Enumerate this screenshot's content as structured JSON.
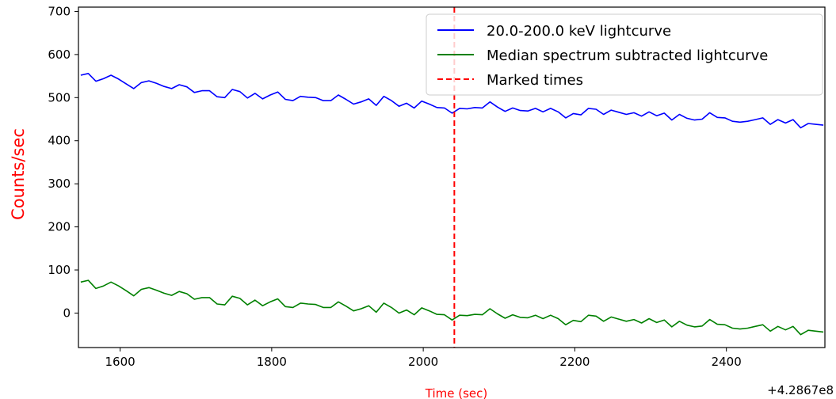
{
  "chart_data": {
    "type": "line",
    "title": "",
    "xlabel": "Time (sec)",
    "ylabel": "Counts/sec",
    "axis_label_color": "#ff0000",
    "x_offset_label": "+4.2867e8",
    "xlim": [
      1545,
      2530
    ],
    "ylim": [
      -80,
      710
    ],
    "xticks": [
      1600,
      1800,
      2000,
      2200,
      2400
    ],
    "yticks": [
      0,
      100,
      200,
      300,
      400,
      500,
      600,
      700
    ],
    "grid": false,
    "legend_position": "top-right",
    "series": [
      {
        "name": "20.0-200.0 keV lightcurve",
        "color": "#0000ff",
        "x": [
          1548,
          1558,
          1568,
          1578,
          1588,
          1598,
          1608,
          1618,
          1628,
          1638,
          1648,
          1658,
          1668,
          1678,
          1688,
          1698,
          1708,
          1718,
          1728,
          1738,
          1748,
          1758,
          1768,
          1778,
          1788,
          1798,
          1808,
          1818,
          1828,
          1838,
          1848,
          1858,
          1868,
          1878,
          1888,
          1898,
          1908,
          1918,
          1928,
          1938,
          1948,
          1958,
          1968,
          1978,
          1988,
          1998,
          2008,
          2018,
          2028,
          2038,
          2048,
          2058,
          2068,
          2078,
          2088,
          2098,
          2108,
          2118,
          2128,
          2138,
          2148,
          2158,
          2168,
          2178,
          2188,
          2198,
          2208,
          2218,
          2228,
          2238,
          2248,
          2258,
          2268,
          2278,
          2288,
          2298,
          2308,
          2318,
          2328,
          2338,
          2348,
          2358,
          2368,
          2378,
          2388,
          2398,
          2408,
          2418,
          2428,
          2438,
          2448,
          2458,
          2468,
          2478,
          2488,
          2498,
          2508,
          2518,
          2528
        ],
        "y": [
          552,
          556,
          538,
          544,
          552,
          543,
          532,
          521,
          535,
          539,
          533,
          526,
          521,
          530,
          525,
          512,
          516,
          516,
          502,
          500,
          519,
          514,
          499,
          510,
          497,
          506,
          513,
          496,
          493,
          503,
          501,
          500,
          493,
          493,
          506,
          496,
          485,
          490,
          497,
          482,
          503,
          493,
          480,
          487,
          476,
          492,
          485,
          477,
          476,
          464,
          475,
          474,
          477,
          476,
          490,
          478,
          468,
          476,
          470,
          469,
          475,
          467,
          475,
          467,
          453,
          463,
          460,
          475,
          473,
          461,
          471,
          466,
          461,
          465,
          457,
          467,
          458,
          464,
          448,
          461,
          452,
          448,
          450,
          465,
          454,
          453,
          445,
          443,
          445,
          449,
          453,
          438,
          449,
          441,
          449,
          430,
          440,
          438,
          436
        ]
      },
      {
        "name": "Median spectrum subtracted lightcurve",
        "color": "#008000",
        "x": [
          1548,
          1558,
          1568,
          1578,
          1588,
          1598,
          1608,
          1618,
          1628,
          1638,
          1648,
          1658,
          1668,
          1678,
          1688,
          1698,
          1708,
          1718,
          1728,
          1738,
          1748,
          1758,
          1768,
          1778,
          1788,
          1798,
          1808,
          1818,
          1828,
          1838,
          1848,
          1858,
          1868,
          1878,
          1888,
          1898,
          1908,
          1918,
          1928,
          1938,
          1948,
          1958,
          1968,
          1978,
          1988,
          1998,
          2008,
          2018,
          2028,
          2038,
          2048,
          2058,
          2068,
          2078,
          2088,
          2098,
          2108,
          2118,
          2128,
          2138,
          2148,
          2158,
          2168,
          2178,
          2188,
          2198,
          2208,
          2218,
          2228,
          2238,
          2248,
          2258,
          2268,
          2278,
          2288,
          2298,
          2308,
          2318,
          2328,
          2338,
          2348,
          2358,
          2368,
          2378,
          2388,
          2398,
          2408,
          2418,
          2428,
          2438,
          2448,
          2458,
          2468,
          2478,
          2488,
          2498,
          2508,
          2518,
          2528
        ],
        "y": [
          72,
          76,
          57,
          63,
          72,
          63,
          52,
          40,
          55,
          59,
          53,
          46,
          41,
          50,
          45,
          32,
          36,
          36,
          21,
          19,
          39,
          34,
          19,
          30,
          17,
          26,
          33,
          15,
          13,
          23,
          21,
          20,
          13,
          13,
          26,
          16,
          5,
          10,
          17,
          2,
          23,
          13,
          0,
          7,
          -4,
          12,
          5,
          -3,
          -4,
          -16,
          -5,
          -6,
          -3,
          -4,
          10,
          -2,
          -12,
          -4,
          -10,
          -11,
          -5,
          -13,
          -5,
          -13,
          -27,
          -17,
          -20,
          -5,
          -7,
          -19,
          -9,
          -14,
          -19,
          -15,
          -23,
          -13,
          -22,
          -16,
          -32,
          -19,
          -28,
          -32,
          -30,
          -15,
          -26,
          -27,
          -35,
          -37,
          -35,
          -31,
          -27,
          -42,
          -31,
          -39,
          -31,
          -50,
          -40,
          -42,
          -44
        ]
      },
      {
        "name": "Marked times",
        "color": "#ff0000",
        "style": "dashed",
        "vline_x": 2041
      }
    ]
  }
}
